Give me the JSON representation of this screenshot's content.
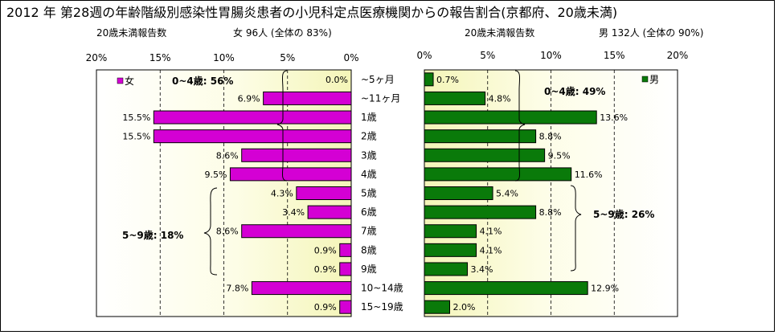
{
  "title": "2012 年 第28週の年齢階級別感染性胃腸炎患者の小児科定点医療機関からの報告割合(京都府、20歳未満)",
  "female_header": {
    "count_label": "20歳未満報告数",
    "summary": "女  96人 (全体の  83%)"
  },
  "male_header": {
    "count_label": "20歳未満報告数",
    "summary": "男  132人 (全体の  90%)"
  },
  "annotations": {
    "female_0_4": "0~4歳: 56%",
    "female_5_9": "5~9歳: 18%",
    "male_0_4": "0~4歳: 49%",
    "male_5_9": "5~9歳: 26%"
  },
  "chart_data": [
    {
      "type": "bar",
      "orientation": "horizontal",
      "direction": "right-to-left",
      "series": [
        {
          "name": "女",
          "values": [
            0.0,
            6.9,
            15.5,
            15.5,
            8.6,
            9.5,
            4.3,
            3.4,
            8.6,
            0.9,
            0.9,
            7.8,
            0.9
          ]
        }
      ],
      "value_labels": [
        "0.0%",
        "6.9%",
        "15.5%",
        "15.5%",
        "8.6%",
        "9.5%",
        "4.3%",
        "3.4%",
        "8.6%",
        "0.9%",
        "0.9%",
        "7.8%",
        "0.9%"
      ],
      "xlim": [
        0,
        20
      ],
      "x_ticks": [
        "20%",
        "15%",
        "10%",
        "5%",
        "0%"
      ],
      "legend": "top-left",
      "color": "#d400d4"
    },
    {
      "type": "bar",
      "orientation": "horizontal",
      "direction": "left-to-right",
      "series": [
        {
          "name": "男",
          "values": [
            0.7,
            4.8,
            13.6,
            8.8,
            9.5,
            11.6,
            5.4,
            8.8,
            4.1,
            4.1,
            3.4,
            12.9,
            2.0
          ]
        }
      ],
      "value_labels": [
        "0.7%",
        "4.8%",
        "13.6%",
        "8.8%",
        "9.5%",
        "11.6%",
        "5.4%",
        "8.8%",
        "4.1%",
        "4.1%",
        "3.4%",
        "12.9%",
        "2.0%"
      ],
      "xlim": [
        0,
        20
      ],
      "x_ticks": [
        "0%",
        "5%",
        "10%",
        "15%",
        "20%"
      ],
      "legend": "top-right",
      "color": "#0a7a0a"
    }
  ],
  "categories": [
    "~5ヶ月",
    "~11ヶ月",
    "1歳",
    "2歳",
    "3歳",
    "4歳",
    "5歳",
    "6歳",
    "7歳",
    "8歳",
    "9歳",
    "10~14歳",
    "15~19歳"
  ]
}
